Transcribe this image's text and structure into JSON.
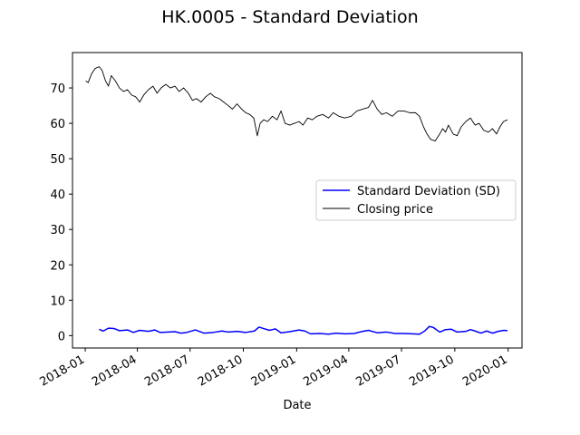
{
  "chart_data": {
    "type": "line",
    "title": "HK.0005 - Standard Deviation",
    "xlabel": "Date",
    "ylabel": "",
    "xlim": [
      "2017-12-10",
      "2020-01-25"
    ],
    "ylim": [
      -3.5,
      80
    ],
    "x_ticks": [
      "2018-01",
      "2018-04",
      "2018-07",
      "2018-10",
      "2019-01",
      "2019-04",
      "2019-07",
      "2019-10",
      "2020-01"
    ],
    "y_ticks": [
      0,
      10,
      20,
      30,
      40,
      50,
      60,
      70
    ],
    "grid": false,
    "legend_position": "center-right",
    "series": [
      {
        "name": "Standard Deviation (SD)",
        "color": "#0000ff",
        "points": [
          [
            "2018-01-25",
            1.8
          ],
          [
            "2018-02-01",
            1.3
          ],
          [
            "2018-02-10",
            2.1
          ],
          [
            "2018-02-20",
            2.0
          ],
          [
            "2018-03-01",
            1.4
          ],
          [
            "2018-03-15",
            1.6
          ],
          [
            "2018-03-25",
            0.9
          ],
          [
            "2018-04-05",
            1.5
          ],
          [
            "2018-04-20",
            1.2
          ],
          [
            "2018-05-01",
            1.6
          ],
          [
            "2018-05-10",
            0.9
          ],
          [
            "2018-05-25",
            1.0
          ],
          [
            "2018-06-05",
            1.1
          ],
          [
            "2018-06-15",
            0.7
          ],
          [
            "2018-06-25",
            0.9
          ],
          [
            "2018-07-10",
            1.6
          ],
          [
            "2018-07-25",
            0.7
          ],
          [
            "2018-08-10",
            0.9
          ],
          [
            "2018-08-25",
            1.3
          ],
          [
            "2018-09-05",
            1.0
          ],
          [
            "2018-09-20",
            1.2
          ],
          [
            "2018-10-05",
            0.9
          ],
          [
            "2018-10-20",
            1.3
          ],
          [
            "2018-10-28",
            2.4
          ],
          [
            "2018-11-05",
            2.0
          ],
          [
            "2018-11-15",
            1.5
          ],
          [
            "2018-11-25",
            1.9
          ],
          [
            "2018-12-05",
            0.8
          ],
          [
            "2018-12-20",
            1.1
          ],
          [
            "2019-01-05",
            1.6
          ],
          [
            "2019-01-15",
            1.3
          ],
          [
            "2019-01-25",
            0.5
          ],
          [
            "2019-02-10",
            0.6
          ],
          [
            "2019-02-25",
            0.4
          ],
          [
            "2019-03-10",
            0.7
          ],
          [
            "2019-03-25",
            0.5
          ],
          [
            "2019-04-10",
            0.6
          ],
          [
            "2019-04-25",
            1.2
          ],
          [
            "2019-05-05",
            1.5
          ],
          [
            "2019-05-20",
            0.8
          ],
          [
            "2019-06-05",
            1.0
          ],
          [
            "2019-06-20",
            0.6
          ],
          [
            "2019-07-05",
            0.6
          ],
          [
            "2019-07-20",
            0.5
          ],
          [
            "2019-08-01",
            0.4
          ],
          [
            "2019-08-10",
            1.3
          ],
          [
            "2019-08-18",
            2.6
          ],
          [
            "2019-08-25",
            2.3
          ],
          [
            "2019-09-05",
            1.0
          ],
          [
            "2019-09-15",
            1.7
          ],
          [
            "2019-09-25",
            1.8
          ],
          [
            "2019-10-05",
            1.0
          ],
          [
            "2019-10-20",
            1.2
          ],
          [
            "2019-10-28",
            1.7
          ],
          [
            "2019-11-05",
            1.3
          ],
          [
            "2019-11-15",
            0.7
          ],
          [
            "2019-11-25",
            1.3
          ],
          [
            "2019-12-05",
            0.7
          ],
          [
            "2019-12-15",
            1.2
          ],
          [
            "2019-12-25",
            1.5
          ],
          [
            "2019-12-31",
            1.4
          ]
        ]
      },
      {
        "name": "Closing price",
        "color": "#000000",
        "points": [
          [
            "2018-01-02",
            72
          ],
          [
            "2018-01-06",
            71.5
          ],
          [
            "2018-01-12",
            74
          ],
          [
            "2018-01-18",
            75.5
          ],
          [
            "2018-01-25",
            76
          ],
          [
            "2018-01-30",
            75
          ],
          [
            "2018-02-05",
            72
          ],
          [
            "2018-02-10",
            70.5
          ],
          [
            "2018-02-15",
            73.5
          ],
          [
            "2018-02-22",
            72
          ],
          [
            "2018-03-01",
            70
          ],
          [
            "2018-03-08",
            69
          ],
          [
            "2018-03-15",
            69.5
          ],
          [
            "2018-03-22",
            68
          ],
          [
            "2018-03-29",
            67.5
          ],
          [
            "2018-04-05",
            66
          ],
          [
            "2018-04-12",
            68
          ],
          [
            "2018-04-20",
            69.5
          ],
          [
            "2018-04-28",
            70.5
          ],
          [
            "2018-05-05",
            68.5
          ],
          [
            "2018-05-12",
            70
          ],
          [
            "2018-05-20",
            71
          ],
          [
            "2018-05-28",
            70
          ],
          [
            "2018-06-05",
            70.5
          ],
          [
            "2018-06-12",
            69
          ],
          [
            "2018-06-20",
            70
          ],
          [
            "2018-06-28",
            68.5
          ],
          [
            "2018-07-05",
            66.5
          ],
          [
            "2018-07-12",
            67
          ],
          [
            "2018-07-20",
            66
          ],
          [
            "2018-07-28",
            67.5
          ],
          [
            "2018-08-05",
            68.5
          ],
          [
            "2018-08-12",
            67.5
          ],
          [
            "2018-08-20",
            67
          ],
          [
            "2018-08-28",
            66
          ],
          [
            "2018-09-05",
            65
          ],
          [
            "2018-09-12",
            64
          ],
          [
            "2018-09-20",
            65.5
          ],
          [
            "2018-09-28",
            64
          ],
          [
            "2018-10-05",
            63
          ],
          [
            "2018-10-12",
            62.5
          ],
          [
            "2018-10-19",
            61.5
          ],
          [
            "2018-10-25",
            56.5
          ],
          [
            "2018-10-30",
            60
          ],
          [
            "2018-11-05",
            61
          ],
          [
            "2018-11-12",
            60.5
          ],
          [
            "2018-11-20",
            62
          ],
          [
            "2018-11-28",
            61
          ],
          [
            "2018-12-05",
            63.5
          ],
          [
            "2018-12-12",
            60
          ],
          [
            "2018-12-20",
            59.5
          ],
          [
            "2018-12-28",
            60
          ],
          [
            "2019-01-05",
            60.5
          ],
          [
            "2019-01-12",
            59.5
          ],
          [
            "2019-01-20",
            61.5
          ],
          [
            "2019-01-28",
            61
          ],
          [
            "2019-02-05",
            62
          ],
          [
            "2019-02-15",
            62.5
          ],
          [
            "2019-02-25",
            61.5
          ],
          [
            "2019-03-05",
            63
          ],
          [
            "2019-03-15",
            62
          ],
          [
            "2019-03-25",
            61.5
          ],
          [
            "2019-04-05",
            62
          ],
          [
            "2019-04-15",
            63.5
          ],
          [
            "2019-04-25",
            64
          ],
          [
            "2019-05-05",
            64.5
          ],
          [
            "2019-05-12",
            66.5
          ],
          [
            "2019-05-20",
            64
          ],
          [
            "2019-05-28",
            62.5
          ],
          [
            "2019-06-05",
            63
          ],
          [
            "2019-06-15",
            62
          ],
          [
            "2019-06-25",
            63.5
          ],
          [
            "2019-07-05",
            63.5
          ],
          [
            "2019-07-15",
            63
          ],
          [
            "2019-07-25",
            63
          ],
          [
            "2019-08-01",
            62
          ],
          [
            "2019-08-08",
            59
          ],
          [
            "2019-08-14",
            57
          ],
          [
            "2019-08-20",
            55.5
          ],
          [
            "2019-08-28",
            55
          ],
          [
            "2019-09-05",
            57
          ],
          [
            "2019-09-10",
            58.5
          ],
          [
            "2019-09-15",
            57.5
          ],
          [
            "2019-09-20",
            59.5
          ],
          [
            "2019-09-28",
            57
          ],
          [
            "2019-10-05",
            56.5
          ],
          [
            "2019-10-12",
            59
          ],
          [
            "2019-10-20",
            60.5
          ],
          [
            "2019-10-28",
            61.5
          ],
          [
            "2019-11-05",
            59.5
          ],
          [
            "2019-11-12",
            60
          ],
          [
            "2019-11-20",
            58
          ],
          [
            "2019-11-28",
            57.5
          ],
          [
            "2019-12-05",
            58.5
          ],
          [
            "2019-12-12",
            57
          ],
          [
            "2019-12-18",
            59
          ],
          [
            "2019-12-24",
            60.5
          ],
          [
            "2019-12-31",
            61
          ]
        ]
      }
    ]
  }
}
